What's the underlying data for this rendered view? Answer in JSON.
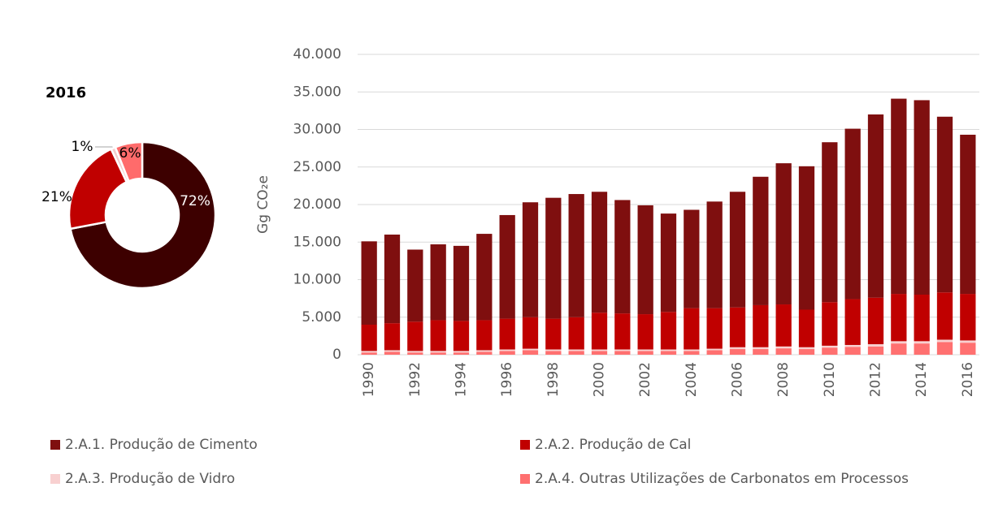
{
  "chart_data": [
    {
      "type": "donut",
      "title": "2016",
      "categories": [
        "2.A.1. Produção de Cimento",
        "2.A.2. Produção de Cal",
        "2.A.3. Produção de Vidro",
        "2.A.4. Outras Utilizações de Carbonatos em Processos"
      ],
      "values": [
        72,
        21,
        1,
        6
      ],
      "value_labels": [
        "72%",
        "21%",
        "1%",
        "6%"
      ],
      "colors": [
        "#3d0000",
        "#c00000",
        "#f4cccc",
        "#ff6b6b"
      ]
    },
    {
      "type": "stacked_bar",
      "ylabel": "Gg CO₂e",
      "categories": [
        "1990",
        null,
        "1992",
        null,
        "1994",
        null,
        "1996",
        null,
        "1998",
        null,
        "2000",
        null,
        "2002",
        null,
        "2004",
        null,
        "2006",
        null,
        "2008",
        null,
        "2010",
        null,
        "2012",
        null,
        "2014",
        null,
        "2016"
      ],
      "series": [
        {
          "name": "2.A.1. Produção de Cimento",
          "color": "#7f0f0f",
          "values": [
            11100,
            11800,
            9600,
            10100,
            10000,
            11500,
            13800,
            15300,
            16100,
            16400,
            16100,
            15100,
            14500,
            13100,
            13100,
            14200,
            15400,
            17100,
            18800,
            19100,
            21300,
            22700,
            24400,
            26000,
            25900,
            23400,
            21200
          ]
        },
        {
          "name": "2.A.2. Produção de Cal",
          "color": "#c00000",
          "values": [
            3500,
            3600,
            3900,
            4100,
            4000,
            4000,
            4100,
            4200,
            4100,
            4300,
            4900,
            4800,
            4700,
            5000,
            5500,
            5400,
            5300,
            5600,
            5600,
            5000,
            5800,
            6100,
            6200,
            6300,
            6200,
            6300,
            6200
          ]
        },
        {
          "name": "2.A.3. Produção de Vidro",
          "color": "#f8d0d0",
          "values": [
            200,
            200,
            200,
            200,
            200,
            200,
            200,
            200,
            200,
            200,
            200,
            200,
            200,
            200,
            200,
            200,
            250,
            250,
            250,
            250,
            250,
            250,
            300,
            300,
            300,
            300,
            300
          ]
        },
        {
          "name": "2.A.4. Outras Utilizações de Carbonatos em Processos",
          "color": "#ff7070",
          "values": [
            300,
            400,
            300,
            300,
            300,
            400,
            500,
            600,
            500,
            500,
            500,
            500,
            500,
            500,
            500,
            600,
            750,
            750,
            850,
            750,
            950,
            1050,
            1100,
            1500,
            1500,
            1700,
            1600
          ]
        }
      ],
      "ylim": [
        0,
        40000
      ],
      "yticks": [
        0,
        {
          "value": 5000,
          "label": "5.000"
        },
        {
          "value": 10000,
          "label": "10.000"
        },
        {
          "value": 15000,
          "label": "15.000"
        },
        {
          "value": 20000,
          "label": "20.000"
        },
        {
          "value": 25000,
          "label": "25.000"
        },
        {
          "value": 30000,
          "label": "30.000"
        },
        {
          "value": 35000,
          "label": "35.000"
        },
        {
          "value": 40000,
          "label": "40.000"
        }
      ],
      "grid": true
    }
  ]
}
